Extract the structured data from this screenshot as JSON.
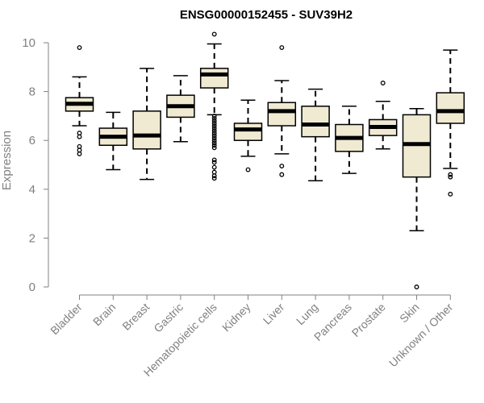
{
  "chart_data": {
    "type": "boxplot",
    "title": "ENSG00000152455 - SUV39H2",
    "ylabel": "Expression",
    "xlabel": "",
    "ylim": [
      0,
      10.4
    ],
    "yticks": [
      0,
      2,
      4,
      6,
      8,
      10
    ],
    "grid": false,
    "legend": "none",
    "box_fill": "#f0ead2",
    "median_color": "#000000",
    "axis_color": "#808080",
    "categories": [
      "Bladder",
      "Brain",
      "Breast",
      "Gastric",
      "Hematopoietic cells",
      "Kidney",
      "Liver",
      "Lung",
      "Pancreas",
      "Prostate",
      "Skin",
      "Unknown / Other"
    ],
    "boxes": [
      {
        "category": "Bladder",
        "whisker_low": 6.6,
        "q1": 7.2,
        "median": 7.5,
        "q3": 7.75,
        "whisker_high": 8.6,
        "outliers": [
          9.8,
          6.3,
          6.15,
          5.75,
          5.6,
          5.45
        ]
      },
      {
        "category": "Brain",
        "whisker_low": 4.8,
        "q1": 5.8,
        "median": 6.15,
        "q3": 6.5,
        "whisker_high": 7.15,
        "outliers": []
      },
      {
        "category": "Breast",
        "whisker_low": 4.4,
        "q1": 5.65,
        "median": 6.2,
        "q3": 7.2,
        "whisker_high": 8.95,
        "outliers": []
      },
      {
        "category": "Gastric",
        "whisker_low": 5.95,
        "q1": 6.95,
        "median": 7.4,
        "q3": 7.85,
        "whisker_high": 8.65,
        "outliers": []
      },
      {
        "category": "Hematopoietic cells",
        "whisker_low": 7.05,
        "q1": 8.15,
        "median": 8.7,
        "q3": 8.95,
        "whisker_high": 9.95,
        "outliers": [
          10.35,
          7.0,
          6.9,
          6.8,
          6.7,
          6.6,
          6.5,
          6.4,
          6.3,
          6.2,
          6.1,
          6.0,
          5.9,
          5.8,
          5.7,
          5.2,
          5.1,
          4.9,
          4.7,
          4.55,
          4.45
        ]
      },
      {
        "category": "Kidney",
        "whisker_low": 5.35,
        "q1": 6.0,
        "median": 6.45,
        "q3": 6.7,
        "whisker_high": 7.65,
        "outliers": [
          4.8
        ]
      },
      {
        "category": "Liver",
        "whisker_low": 5.45,
        "q1": 6.6,
        "median": 7.2,
        "q3": 7.55,
        "whisker_high": 8.45,
        "outliers": [
          9.8,
          4.95,
          4.6
        ]
      },
      {
        "category": "Lung",
        "whisker_low": 4.35,
        "q1": 6.15,
        "median": 6.65,
        "q3": 7.4,
        "whisker_high": 8.1,
        "outliers": []
      },
      {
        "category": "Pancreas",
        "whisker_low": 4.65,
        "q1": 5.55,
        "median": 6.1,
        "q3": 6.65,
        "whisker_high": 7.4,
        "outliers": []
      },
      {
        "category": "Prostate",
        "whisker_low": 5.65,
        "q1": 6.2,
        "median": 6.55,
        "q3": 6.85,
        "whisker_high": 7.6,
        "outliers": [
          8.35
        ]
      },
      {
        "category": "Skin",
        "whisker_low": 2.3,
        "q1": 4.5,
        "median": 5.85,
        "q3": 7.05,
        "whisker_high": 7.3,
        "outliers": [
          0.0
        ]
      },
      {
        "category": "Unknown / Other",
        "whisker_low": 4.85,
        "q1": 6.7,
        "median": 7.2,
        "q3": 7.95,
        "whisker_high": 9.7,
        "outliers": [
          4.6,
          4.5,
          3.8
        ]
      }
    ]
  }
}
